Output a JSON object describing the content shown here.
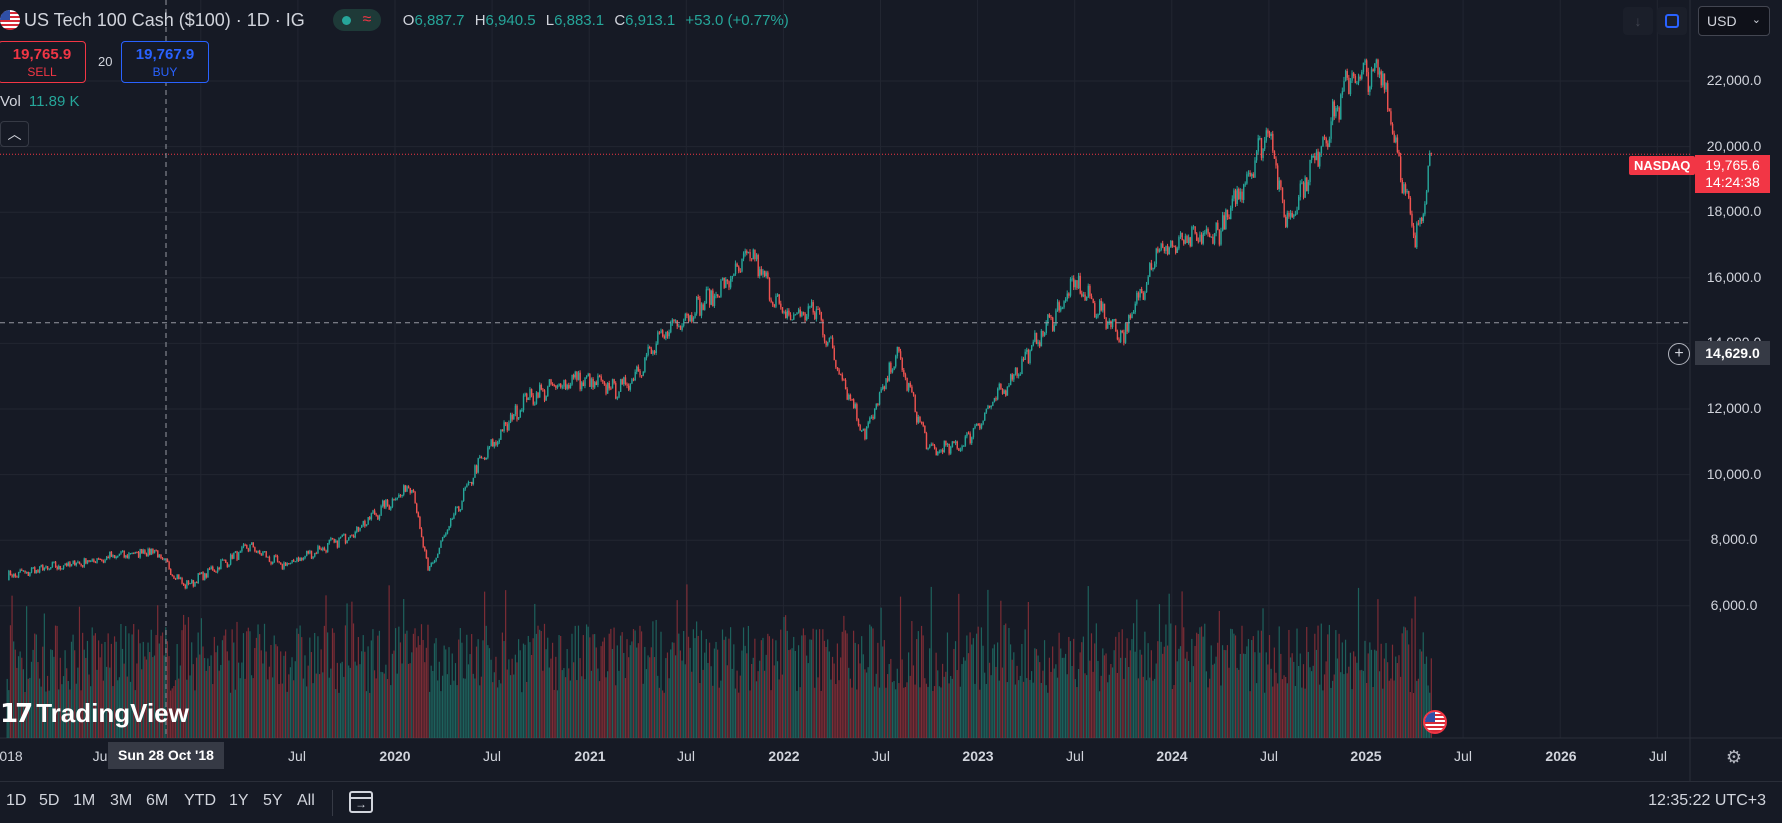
{
  "legend": {
    "title": "US Tech 100 Cash ($100) · 1D · IG",
    "ohlc": [
      {
        "k": "O",
        "v": "6,887.7"
      },
      {
        "k": "H",
        "v": "6,940.5"
      },
      {
        "k": "L",
        "v": "6,883.1"
      },
      {
        "k": "C",
        "v": "6,913.1"
      }
    ],
    "change": "+53.0 (+0.77%)",
    "volume_label": "Vol",
    "volume_value": "11.89 K"
  },
  "trade": {
    "sell_price": "19,765.9",
    "sell_label": "SELL",
    "spread": "20",
    "buy_price": "19,767.9",
    "buy_label": "BUY"
  },
  "toolbar": {
    "currency": "USD"
  },
  "price_axis": {
    "ticks": [
      "22,000.0",
      "20,000.0",
      "18,000.0",
      "16,000.0",
      "14,000.0",
      "12,000.0",
      "10,000.0",
      "8,000.0",
      "6,000.0"
    ],
    "exchange_badge": "NASDAQ",
    "last_price": "19,765.6",
    "countdown": "14:24:38",
    "crosshair_price": "14,629.0"
  },
  "time_axis": {
    "labels": [
      "018",
      "Ju",
      "Jul",
      "2020",
      "Jul",
      "2021",
      "Jul",
      "2022",
      "Jul",
      "2023",
      "Jul",
      "2024",
      "Jul",
      "2025",
      "Jul",
      "2026",
      "Jul"
    ],
    "crosshair_time": "Sun 28 Oct '18"
  },
  "bottom_bar": {
    "ranges": [
      "1D",
      "5D",
      "1M",
      "3M",
      "6M",
      "YTD",
      "1Y",
      "5Y",
      "All"
    ],
    "clock": "12:35:22 UTC+3"
  },
  "branding": {
    "logo_text": "TradingView"
  },
  "chart_data": {
    "type": "line",
    "title": "",
    "series": [
      {
        "values": [
          {
            "date": "2018-01",
            "close": 6900
          },
          {
            "date": "2018-03",
            "close": 7100
          },
          {
            "date": "2018-10",
            "close": 7700
          },
          {
            "date": "2018-12",
            "close": 6600
          },
          {
            "date": "2019-04",
            "close": 7800
          },
          {
            "date": "2019-06",
            "close": 7200
          },
          {
            "date": "2019-10",
            "close": 8100
          },
          {
            "date": "2020-02",
            "close": 9700
          },
          {
            "date": "2020-03",
            "close": 7000
          },
          {
            "date": "2020-06",
            "close": 10200
          },
          {
            "date": "2020-09",
            "close": 12300
          },
          {
            "date": "2020-12",
            "close": 12900
          },
          {
            "date": "2021-03",
            "close": 12600
          },
          {
            "date": "2021-06",
            "close": 14500
          },
          {
            "date": "2021-09",
            "close": 15600
          },
          {
            "date": "2021-11",
            "close": 16700
          },
          {
            "date": "2022-01",
            "close": 14800
          },
          {
            "date": "2022-03",
            "close": 15000
          },
          {
            "date": "2022-06",
            "close": 11200
          },
          {
            "date": "2022-08",
            "close": 13700
          },
          {
            "date": "2022-10",
            "close": 10700
          },
          {
            "date": "2022-12",
            "close": 10900
          },
          {
            "date": "2023-03",
            "close": 12900
          },
          {
            "date": "2023-07",
            "close": 15800
          },
          {
            "date": "2023-10",
            "close": 14200
          },
          {
            "date": "2023-12",
            "close": 16800
          },
          {
            "date": "2024-04",
            "close": 17400
          },
          {
            "date": "2024-07",
            "close": 20600
          },
          {
            "date": "2024-08",
            "close": 17600
          },
          {
            "date": "2024-12",
            "close": 22100
          },
          {
            "date": "2025-02",
            "close": 22200
          },
          {
            "date": "2025-04",
            "close": 17000
          },
          {
            "date": "2025-05",
            "close": 19765.6
          }
        ]
      }
    ],
    "ylim": [
      4600,
      23800
    ],
    "x_range": [
      "2017-12",
      "2026-10"
    ],
    "y_scale": "linear",
    "grid": true,
    "volume_panel": true
  }
}
